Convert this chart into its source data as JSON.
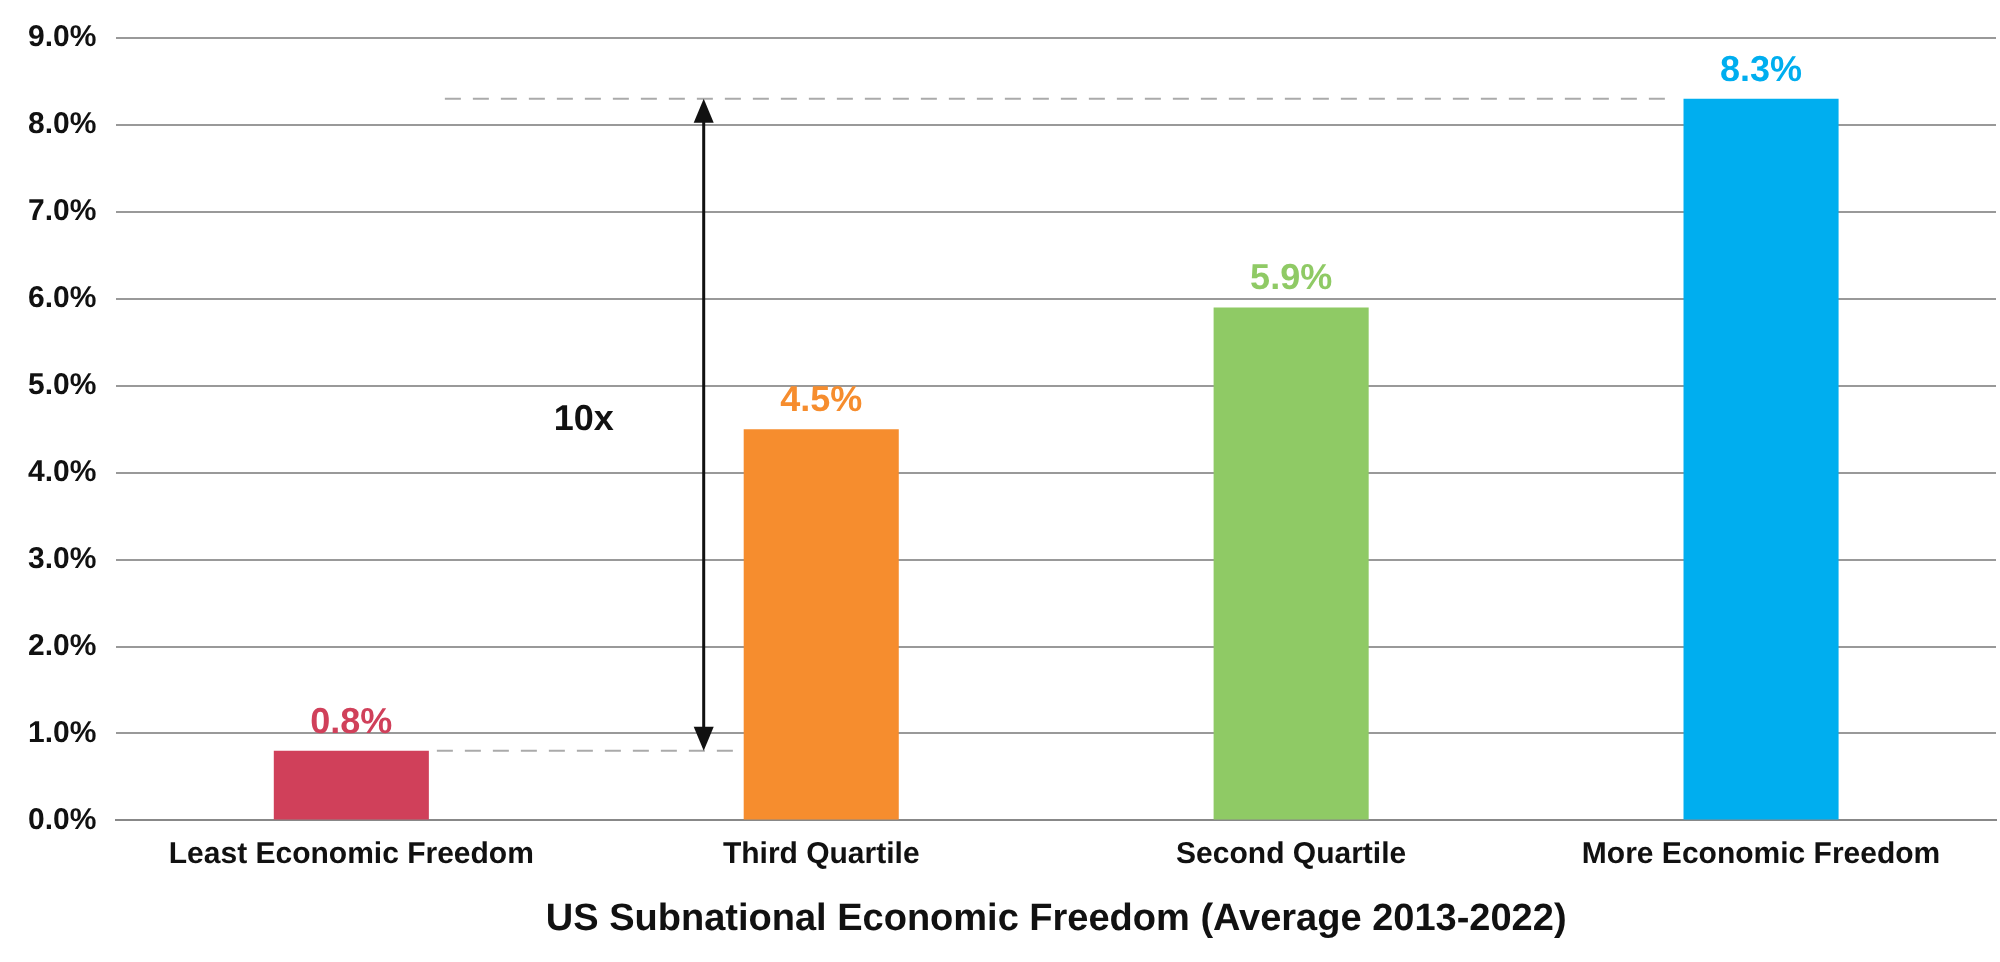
{
  "chart_data": {
    "type": "bar",
    "xlabel": "US Subnational Economic Freedom (Average 2013-2022)",
    "categories": [
      "Least Economic Freedom",
      "Third Quartile",
      "Second Quartile",
      "More Economic Freedom"
    ],
    "values": [
      0.8,
      4.5,
      5.9,
      8.3
    ],
    "colors": [
      "#d0405a",
      "#f68d2e",
      "#8fca65",
      "#00aeef"
    ],
    "value_labels": [
      "0.8%",
      "4.5%",
      "5.9%",
      "8.3%"
    ],
    "ylim": [
      0,
      9
    ],
    "yticks": [
      {
        "value": 0,
        "label": "0.0%"
      },
      {
        "value": 1,
        "label": "1.0%"
      },
      {
        "value": 2,
        "label": "2.0%"
      },
      {
        "value": 3,
        "label": "3.0%"
      },
      {
        "value": 4,
        "label": "4.0%"
      },
      {
        "value": 5,
        "label": "5.0%"
      },
      {
        "value": 6,
        "label": "6.0%"
      },
      {
        "value": 7,
        "label": "7.0%"
      },
      {
        "value": 8,
        "label": "8.0%"
      },
      {
        "value": 9,
        "label": "9.0%"
      }
    ],
    "grid": "y",
    "legend": false,
    "ref_lines": [
      {
        "axis": "y",
        "value": 8.3,
        "color": "#aaaaaa",
        "line_style": "dashed"
      },
      {
        "axis": "y",
        "value": 0.8,
        "color": "#aaaaaa",
        "line_style": "dashed"
      }
    ],
    "annotations": [
      "10x"
    ]
  }
}
